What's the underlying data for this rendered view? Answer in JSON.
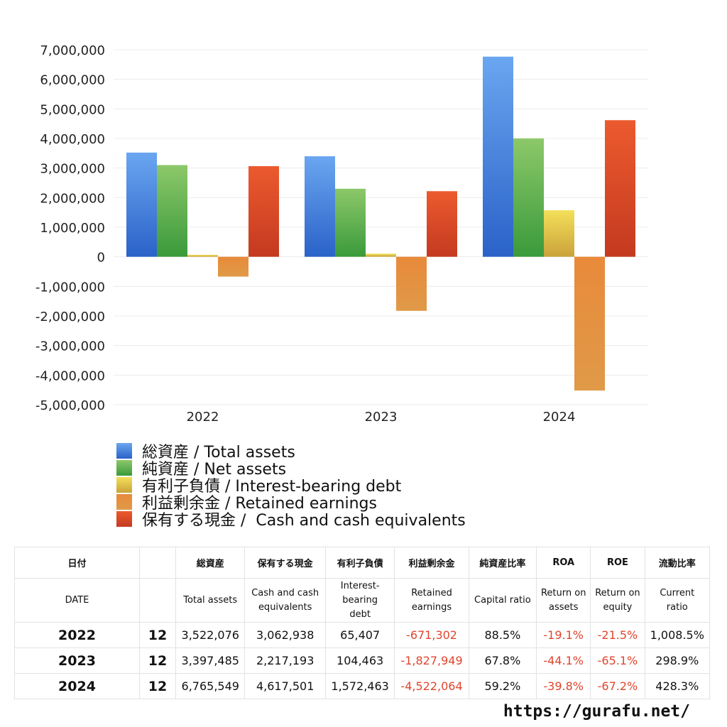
{
  "chart_data": {
    "type": "bar",
    "categories": [
      "2022",
      "2023",
      "2024"
    ],
    "series": [
      {
        "name": "総資産 / Total assets",
        "values": [
          3522076,
          3397485,
          6765549
        ],
        "color_top": "#6aa6f0",
        "color_bottom": "#2a62c8"
      },
      {
        "name": "純資産 / Net assets",
        "values": [
          3100000,
          2300000,
          4000000
        ],
        "color_top": "#8cc86a",
        "color_bottom": "#3a9a3a"
      },
      {
        "name": "有利子負債 / Interest-bearing debt",
        "values": [
          65407,
          104463,
          1572463
        ],
        "color_top": "#f3e05a",
        "color_bottom": "#caa23a"
      },
      {
        "name": "利益剰余金 / Retained earnings",
        "values": [
          -671302,
          -1827949,
          -4522064
        ],
        "color_top": "#e88a3a",
        "color_bottom": "#e09a48"
      },
      {
        "name": "保有する現金 /  Cash and cash equivalents",
        "values": [
          3062938,
          2217193,
          4617501
        ],
        "color_top": "#ec5a2e",
        "color_bottom": "#c43a20"
      }
    ],
    "ylim": [
      -5000000,
      7000000
    ],
    "yticks": [
      "7,000,000",
      "6,000,000",
      "5,000,000",
      "4,000,000",
      "3,000,000",
      "2,000,000",
      "1,000,000",
      "0",
      "-1,000,000",
      "-2,000,000",
      "-3,000,000",
      "-4,000,000",
      "-5,000,000"
    ],
    "ytick_values": [
      7000000,
      6000000,
      5000000,
      4000000,
      3000000,
      2000000,
      1000000,
      0,
      -1000000,
      -2000000,
      -3000000,
      -4000000,
      -5000000
    ],
    "grid": true,
    "legend_position": "bottom"
  },
  "table": {
    "header_jp": [
      "日付",
      "",
      "総資産",
      "保有する現金",
      "有利子負債",
      "利益剰余金",
      "純資産比率",
      "ROA",
      "ROE",
      "流動比率"
    ],
    "header_en": [
      "DATE",
      "",
      "Total assets",
      "Cash and cash\nequivalents",
      "Interest-\nbearing\ndebt",
      "Retained\nearnings",
      "Capital ratio",
      "Return on\nassets",
      "Return on\nequity",
      "Current\nratio"
    ],
    "rows": [
      {
        "date": "2022",
        "month": "12",
        "total_assets": "3,522,076",
        "cash": "3,062,938",
        "debt": "65,407",
        "retained": "-671,302",
        "capital_ratio": "88.5%",
        "roa": "-19.1%",
        "roe": "-21.5%",
        "current_ratio": "1,008.5%"
      },
      {
        "date": "2023",
        "month": "12",
        "total_assets": "3,397,485",
        "cash": "2,217,193",
        "debt": "104,463",
        "retained": "-1,827,949",
        "capital_ratio": "67.8%",
        "roa": "-44.1%",
        "roe": "-65.1%",
        "current_ratio": "298.9%"
      },
      {
        "date": "2024",
        "month": "12",
        "total_assets": "6,765,549",
        "cash": "4,617,501",
        "debt": "1,572,463",
        "retained": "-4,522,064",
        "capital_ratio": "59.2%",
        "roa": "-39.8%",
        "roe": "-67.2%",
        "current_ratio": "428.3%"
      }
    ]
  },
  "footer": {
    "url": "https://gurafu.net/"
  }
}
